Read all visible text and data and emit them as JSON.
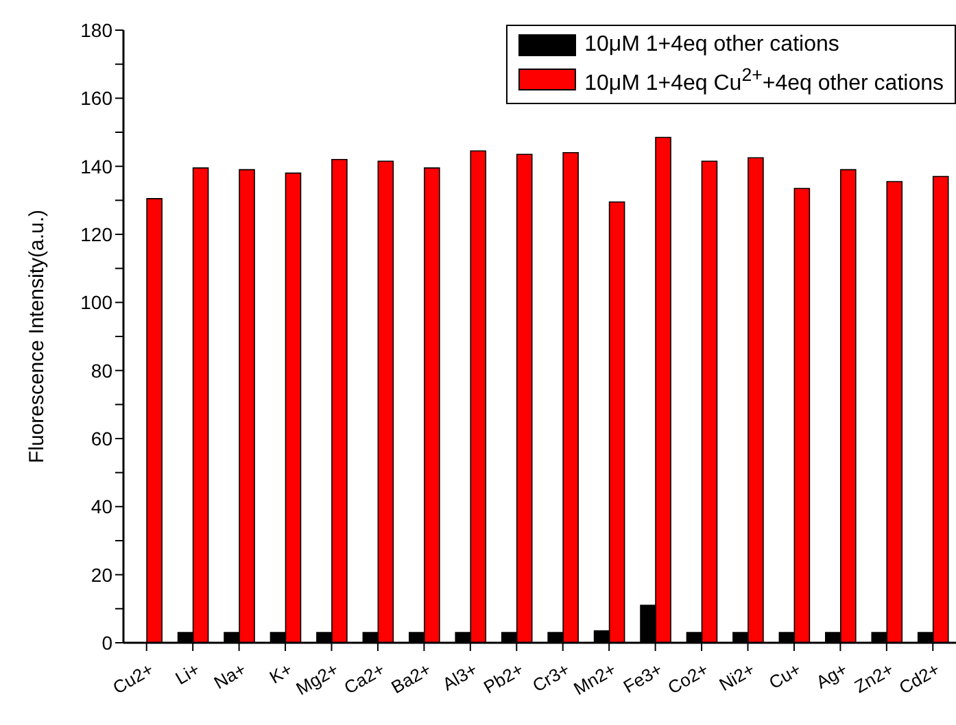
{
  "chart_data": {
    "type": "bar",
    "ylabel": "Fluorescence Intensity(a.u.)",
    "categories": [
      "Cu2+",
      "Li+",
      "Na+",
      "K+",
      "Mg2+",
      "Ca2+",
      "Ba2+",
      "Al3+",
      "Pb2+",
      "Cr3+",
      "Mn2+",
      "Fe3+",
      "Co2+",
      "Ni2+",
      "Cu+",
      "Ag+",
      "Zn2+",
      "Cd2+"
    ],
    "series": [
      {
        "name": "10μM 1+4eq other cations",
        "color": "#000000",
        "values": [
          null,
          3,
          3,
          3,
          3,
          3,
          3,
          3,
          3,
          3,
          3.5,
          11,
          3,
          3,
          3,
          3,
          3,
          3
        ]
      },
      {
        "name": "10μM 1+4eq Cu$^{2+}$+4eq other cations",
        "color": "#ff0000",
        "values": [
          130.5,
          139.5,
          139,
          138,
          142,
          141.5,
          139.5,
          144.5,
          143.5,
          144,
          129.5,
          148.5,
          141.5,
          142.5,
          133.5,
          139,
          135.5,
          137
        ]
      }
    ],
    "ylim": [
      0,
      180
    ],
    "yticks": [
      0,
      {
        "value": 10,
        "label": null
      },
      20,
      {
        "value": 30,
        "label": null
      },
      40,
      {
        "value": 50,
        "label": null
      },
      60,
      {
        "value": 70,
        "label": null
      },
      80,
      {
        "value": 90,
        "label": null
      },
      100,
      {
        "value": 110,
        "label": null
      },
      120,
      {
        "value": 130,
        "label": null
      },
      140,
      {
        "value": 150,
        "label": null
      },
      160,
      {
        "value": 170,
        "label": null
      },
      180
    ],
    "grid": false,
    "legend": "top right"
  }
}
